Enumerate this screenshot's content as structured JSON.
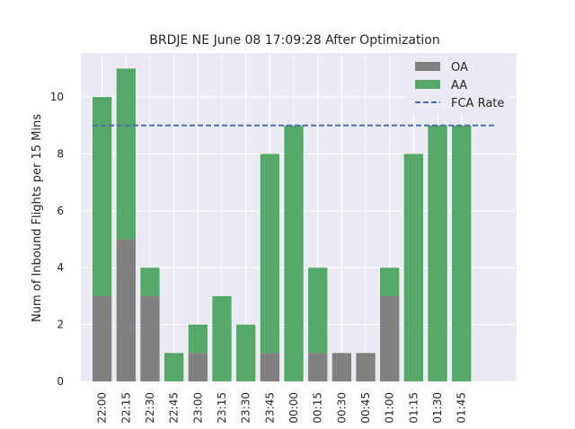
{
  "chart_data": {
    "type": "bar",
    "stacked": true,
    "title": "BRDJE NE June 08 17:09:28 After Optimization",
    "xlabel": "",
    "ylabel": "Num of Inbound Flights per 15 Mins",
    "ylim": [
      0,
      11.55
    ],
    "yticks": [
      0,
      2,
      4,
      6,
      8,
      10
    ],
    "grid": true,
    "legend_position": "top-right",
    "categories": [
      "22:00",
      "22:15",
      "22:30",
      "22:45",
      "23:00",
      "23:15",
      "23:30",
      "23:45",
      "00:00",
      "00:15",
      "00:30",
      "00:45",
      "01:00",
      "01:15",
      "01:30",
      "01:45"
    ],
    "series": [
      {
        "name": "OA",
        "color": "#808080",
        "values": [
          3,
          5,
          3,
          0,
          1,
          0,
          0,
          1,
          0,
          1,
          1,
          1,
          3,
          0,
          0,
          0
        ]
      },
      {
        "name": "AA",
        "color": "#55a868",
        "values": [
          7,
          6,
          1,
          1,
          1,
          3,
          2,
          7,
          9,
          3,
          0,
          0,
          1,
          8,
          9,
          9
        ]
      }
    ],
    "reference_line": {
      "name": "FCA Rate",
      "value": 9,
      "color": "#4c72b0",
      "style": "dashed"
    }
  }
}
